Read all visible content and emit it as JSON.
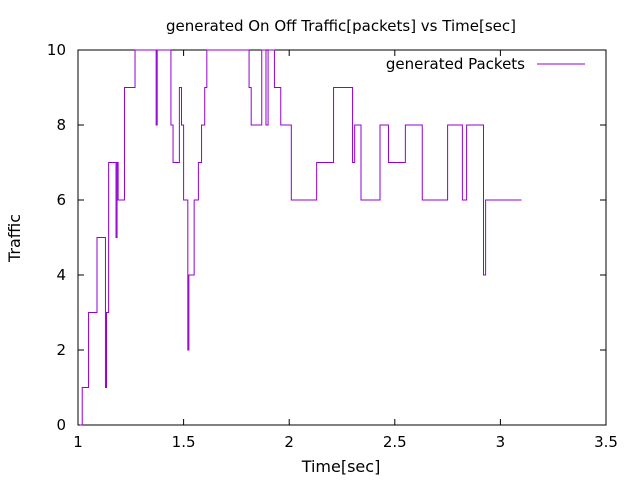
{
  "chart_data": {
    "type": "line",
    "title": "generated On Off Traffic[packets] vs Time[sec]",
    "xlabel": "Time[sec]",
    "ylabel": "Traffic",
    "xlim": [
      1,
      3.5
    ],
    "ylim": [
      0,
      10
    ],
    "x_ticks": [
      1,
      1.5,
      2,
      2.5,
      3,
      3.5
    ],
    "y_ticks": [
      0,
      2,
      4,
      6,
      8,
      10
    ],
    "x_tick_labels": [
      "1",
      "1.5",
      "2",
      "2.5",
      "3",
      "3.5"
    ],
    "y_tick_labels": [
      "0",
      "2",
      "4",
      "6",
      "8",
      "10"
    ],
    "grid": false,
    "legend": {
      "position": "top-right"
    },
    "series": [
      {
        "name": "generated Packets",
        "color": "#9400d3",
        "style": "steps",
        "points": [
          [
            1.01,
            0
          ],
          [
            1.02,
            1
          ],
          [
            1.05,
            3
          ],
          [
            1.09,
            5
          ],
          [
            1.13,
            1
          ],
          [
            1.135,
            3
          ],
          [
            1.145,
            7
          ],
          [
            1.18,
            5
          ],
          [
            1.185,
            7
          ],
          [
            1.19,
            6
          ],
          [
            1.22,
            9
          ],
          [
            1.27,
            10
          ],
          [
            1.37,
            8
          ],
          [
            1.375,
            10
          ],
          [
            1.44,
            8
          ],
          [
            1.45,
            7
          ],
          [
            1.48,
            9
          ],
          [
            1.49,
            8
          ],
          [
            1.5,
            6
          ],
          [
            1.52,
            2
          ],
          [
            1.525,
            4
          ],
          [
            1.55,
            6
          ],
          [
            1.57,
            7
          ],
          [
            1.585,
            8
          ],
          [
            1.6,
            9
          ],
          [
            1.61,
            10
          ],
          [
            1.81,
            9
          ],
          [
            1.82,
            8
          ],
          [
            1.87,
            10
          ],
          [
            1.89,
            8
          ],
          [
            1.9,
            10
          ],
          [
            1.93,
            9
          ],
          [
            1.96,
            8
          ],
          [
            2.01,
            6
          ],
          [
            2.13,
            7
          ],
          [
            2.21,
            9
          ],
          [
            2.3,
            7
          ],
          [
            2.31,
            8
          ],
          [
            2.34,
            6
          ],
          [
            2.43,
            8
          ],
          [
            2.47,
            7
          ],
          [
            2.55,
            8
          ],
          [
            2.63,
            6
          ],
          [
            2.75,
            8
          ],
          [
            2.82,
            6
          ],
          [
            2.84,
            8
          ],
          [
            2.92,
            4
          ],
          [
            2.93,
            6
          ],
          [
            3.1,
            6
          ]
        ]
      }
    ]
  }
}
